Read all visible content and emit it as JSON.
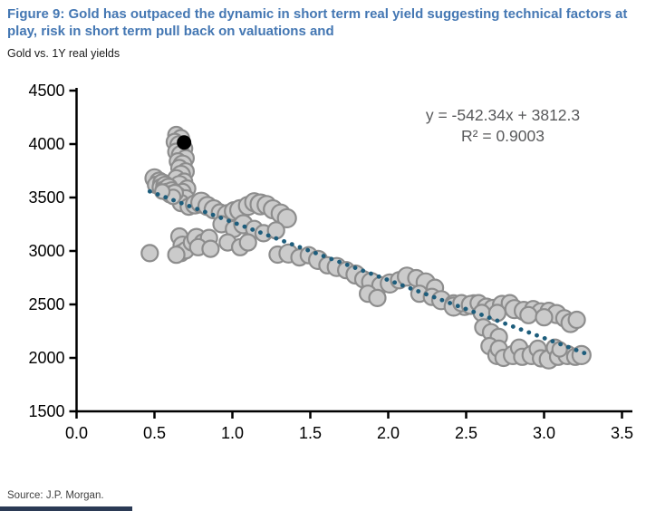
{
  "header": {
    "figure_title": "Figure 9: Gold has outpaced the dynamic in short term real yield suggesting technical factors at play, risk in short term pull back on valuations and",
    "subtitle": "Gold vs. 1Y real yields"
  },
  "footer": {
    "source": "Source: J.P. Morgan."
  },
  "colors": {
    "title_blue": "#4477b3",
    "point_fill": "#cbcbcb",
    "point_stroke": "#8d8d8d",
    "trend": "#1d5d7c",
    "highlight": "#000000",
    "axis": "#000000",
    "annotation_gray": "#58595b"
  },
  "chart_data": {
    "type": "scatter",
    "title": "Gold vs. 1Y real yields",
    "xlabel": "",
    "ylabel": "",
    "xlim": [
      0.0,
      3.5
    ],
    "ylim": [
      1500,
      4500
    ],
    "grid": false,
    "legend": "none",
    "x_ticks": [
      0.0,
      0.5,
      1.0,
      1.5,
      2.0,
      2.5,
      3.0,
      3.5
    ],
    "x_tick_labels": [
      "0.0",
      "0.5",
      "1.0",
      "1.5",
      "2.0",
      "2.5",
      "3.0",
      "3.5"
    ],
    "y_ticks": [
      1500,
      2000,
      2500,
      3000,
      3500,
      4000,
      4500
    ],
    "y_tick_labels": [
      "1500",
      "2000",
      "2500",
      "3000",
      "3500",
      "4000",
      "4500"
    ],
    "annotation": {
      "equation": "y = -542.34x + 3812.3",
      "r_squared": "R² = 0.9003"
    },
    "trendline": {
      "slope": -542.34,
      "intercept": 3812.3,
      "x_start": 0.47,
      "x_end": 3.28,
      "style": "dotted"
    },
    "highlight_point": {
      "x": 0.69,
      "y": 4015,
      "r": 8
    },
    "points": [
      [
        0.64,
        4085,
        9
      ],
      [
        0.67,
        4055,
        9
      ],
      [
        0.63,
        4020,
        9
      ],
      [
        0.66,
        3990,
        10
      ],
      [
        0.69,
        3958,
        9
      ],
      [
        0.64,
        3928,
        9
      ],
      [
        0.67,
        3898,
        10
      ],
      [
        0.7,
        3868,
        9
      ],
      [
        0.65,
        3838,
        9
      ],
      [
        0.68,
        3808,
        10
      ],
      [
        0.66,
        3775,
        9
      ],
      [
        0.7,
        3744,
        9
      ],
      [
        0.67,
        3712,
        10
      ],
      [
        0.64,
        3680,
        9
      ],
      [
        0.69,
        3648,
        9
      ],
      [
        0.66,
        3616,
        10
      ],
      [
        0.71,
        3584,
        9
      ],
      [
        0.68,
        3552,
        9
      ],
      [
        0.65,
        3518,
        9
      ],
      [
        0.7,
        3484,
        10
      ],
      [
        0.67,
        3448,
        9
      ],
      [
        0.72,
        3414,
        9
      ],
      [
        0.5,
        3680,
        10
      ],
      [
        0.53,
        3648,
        10
      ],
      [
        0.51,
        3618,
        9
      ],
      [
        0.55,
        3632,
        10
      ],
      [
        0.54,
        3596,
        9
      ],
      [
        0.57,
        3610,
        10
      ],
      [
        0.56,
        3574,
        9
      ],
      [
        0.59,
        3590,
        10
      ],
      [
        0.58,
        3552,
        9
      ],
      [
        0.61,
        3566,
        9
      ],
      [
        0.6,
        3530,
        9
      ],
      [
        0.63,
        3542,
        9
      ],
      [
        0.62,
        3506,
        8
      ],
      [
        0.55,
        3556,
        8
      ],
      [
        0.76,
        3436,
        10
      ],
      [
        0.8,
        3452,
        11
      ],
      [
        0.84,
        3420,
        10
      ],
      [
        0.88,
        3390,
        10
      ],
      [
        0.92,
        3360,
        9
      ],
      [
        0.97,
        3336,
        11
      ],
      [
        1.01,
        3372,
        10
      ],
      [
        1.05,
        3382,
        11
      ],
      [
        1.1,
        3422,
        10
      ],
      [
        1.14,
        3456,
        10
      ],
      [
        1.18,
        3436,
        11
      ],
      [
        1.22,
        3430,
        10
      ],
      [
        1.26,
        3390,
        10
      ],
      [
        1.31,
        3350,
        10
      ],
      [
        1.35,
        3306,
        10
      ],
      [
        0.93,
        3250,
        9
      ],
      [
        1.01,
        3206,
        9
      ],
      [
        1.07,
        3250,
        10
      ],
      [
        1.14,
        3206,
        9
      ],
      [
        1.2,
        3166,
        9
      ],
      [
        1.28,
        3192,
        9
      ],
      [
        0.66,
        3136,
        9
      ],
      [
        0.68,
        3050,
        10
      ],
      [
        0.67,
        2980,
        9
      ],
      [
        0.7,
        3006,
        9
      ],
      [
        0.64,
        2964,
        9
      ],
      [
        0.74,
        3080,
        9
      ],
      [
        0.77,
        3122,
        10
      ],
      [
        0.81,
        3080,
        9
      ],
      [
        0.85,
        3122,
        9
      ],
      [
        0.78,
        3036,
        9
      ],
      [
        0.86,
        3020,
        9
      ],
      [
        0.97,
        3080,
        9
      ],
      [
        1.05,
        3036,
        9
      ],
      [
        1.1,
        3080,
        9
      ],
      [
        0.47,
        2980,
        9
      ],
      [
        1.29,
        2966,
        9
      ],
      [
        1.36,
        2976,
        10
      ],
      [
        1.43,
        2940,
        9
      ],
      [
        1.49,
        2960,
        9
      ],
      [
        1.55,
        2916,
        10
      ],
      [
        1.61,
        2866,
        9
      ],
      [
        1.67,
        2850,
        10
      ],
      [
        1.73,
        2820,
        9
      ],
      [
        1.79,
        2780,
        10
      ],
      [
        1.84,
        2736,
        9
      ],
      [
        1.89,
        2710,
        10
      ],
      [
        1.95,
        2680,
        9
      ],
      [
        2.01,
        2696,
        10
      ],
      [
        2.07,
        2726,
        9
      ],
      [
        2.12,
        2760,
        10
      ],
      [
        2.18,
        2746,
        9
      ],
      [
        2.24,
        2706,
        10
      ],
      [
        2.3,
        2656,
        9
      ],
      [
        1.87,
        2600,
        9
      ],
      [
        1.93,
        2560,
        9
      ],
      [
        2.2,
        2600,
        9
      ],
      [
        2.28,
        2570,
        9
      ],
      [
        2.34,
        2540,
        10
      ],
      [
        2.42,
        2510,
        9
      ],
      [
        2.49,
        2486,
        10
      ],
      [
        2.55,
        2510,
        9
      ],
      [
        2.42,
        2480,
        10
      ],
      [
        2.47,
        2512,
        9
      ],
      [
        2.53,
        2496,
        10
      ],
      [
        2.58,
        2512,
        9
      ],
      [
        2.63,
        2470,
        10
      ],
      [
        2.67,
        2466,
        9
      ],
      [
        2.73,
        2496,
        10
      ],
      [
        2.78,
        2512,
        9
      ],
      [
        2.81,
        2456,
        10
      ],
      [
        2.87,
        2440,
        10
      ],
      [
        2.93,
        2456,
        9
      ],
      [
        2.98,
        2426,
        10
      ],
      [
        3.03,
        2440,
        9
      ],
      [
        3.08,
        2410,
        10
      ],
      [
        3.13,
        2370,
        9
      ],
      [
        3.17,
        2326,
        10
      ],
      [
        3.21,
        2356,
        9
      ],
      [
        2.6,
        2420,
        9
      ],
      [
        2.7,
        2420,
        9
      ],
      [
        2.9,
        2400,
        9
      ],
      [
        3.0,
        2380,
        9
      ],
      [
        2.61,
        2286,
        9
      ],
      [
        2.66,
        2240,
        9
      ],
      [
        2.71,
        2196,
        9
      ],
      [
        2.65,
        2110,
        9
      ],
      [
        2.7,
        2026,
        10
      ],
      [
        2.71,
        2086,
        9
      ],
      [
        2.74,
        2000,
        9
      ],
      [
        2.8,
        2026,
        10
      ],
      [
        2.84,
        2096,
        9
      ],
      [
        2.86,
        2010,
        9
      ],
      [
        2.92,
        2026,
        10
      ],
      [
        2.96,
        2086,
        9
      ],
      [
        2.98,
        1996,
        9
      ],
      [
        3.03,
        1986,
        10
      ],
      [
        3.07,
        2096,
        9
      ],
      [
        3.09,
        2010,
        9
      ],
      [
        3.15,
        2026,
        10
      ],
      [
        3.2,
        2010,
        9
      ],
      [
        3.24,
        2026,
        10
      ],
      [
        3.1,
        2080,
        8
      ]
    ]
  }
}
